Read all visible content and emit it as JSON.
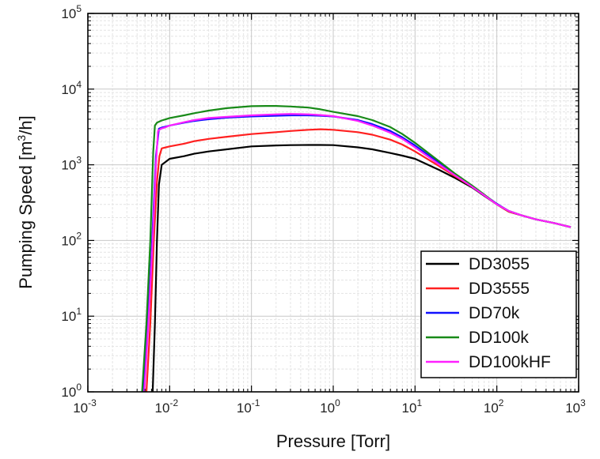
{
  "chart_data": {
    "type": "line",
    "title": "",
    "xlabel": "Pressure [Torr]",
    "ylabel_main": "Pumping Speed [m",
    "ylabel_sup": "3",
    "ylabel_tail": "/h]",
    "xscale": "log",
    "yscale": "log",
    "xlim": [
      0.001,
      1000
    ],
    "ylim": [
      1,
      100000
    ],
    "grid": true,
    "legend_position": "bottom-right",
    "x_ticks": [
      {
        "base": "10",
        "exp": "-3",
        "value": 0.001
      },
      {
        "base": "10",
        "exp": "-2",
        "value": 0.01
      },
      {
        "base": "10",
        "exp": "-1",
        "value": 0.1
      },
      {
        "base": "10",
        "exp": "0",
        "value": 1
      },
      {
        "base": "10",
        "exp": "1",
        "value": 10
      },
      {
        "base": "10",
        "exp": "2",
        "value": 100
      },
      {
        "base": "10",
        "exp": "3",
        "value": 1000
      }
    ],
    "y_ticks": [
      {
        "base": "10",
        "exp": "0",
        "value": 1
      },
      {
        "base": "10",
        "exp": "1",
        "value": 10
      },
      {
        "base": "10",
        "exp": "2",
        "value": 100
      },
      {
        "base": "10",
        "exp": "3",
        "value": 1000
      },
      {
        "base": "10",
        "exp": "4",
        "value": 10000
      },
      {
        "base": "10",
        "exp": "5",
        "value": 100000
      }
    ],
    "series": [
      {
        "name": "DD3055",
        "color": "#000000",
        "x": [
          0.0062,
          0.0066,
          0.007,
          0.0074,
          0.008,
          0.009,
          0.01,
          0.015,
          0.02,
          0.03,
          0.05,
          0.1,
          0.2,
          0.3,
          0.5,
          0.7,
          1,
          2,
          3,
          5,
          7,
          10,
          20,
          30,
          50,
          70,
          100,
          140,
          200,
          300,
          500,
          800
        ],
        "y": [
          1,
          8,
          100,
          550,
          1000,
          1100,
          1200,
          1300,
          1400,
          1500,
          1600,
          1750,
          1800,
          1820,
          1830,
          1830,
          1820,
          1700,
          1600,
          1430,
          1320,
          1200,
          850,
          680,
          500,
          390,
          300,
          240,
          215,
          190,
          170,
          150
        ]
      },
      {
        "name": "DD3555",
        "color": "#ff2020",
        "x": [
          0.0052,
          0.0058,
          0.0064,
          0.007,
          0.0075,
          0.008,
          0.009,
          0.01,
          0.015,
          0.02,
          0.03,
          0.05,
          0.1,
          0.2,
          0.3,
          0.5,
          0.7,
          1,
          2,
          3,
          5,
          7,
          10,
          20,
          30,
          50,
          70,
          100,
          140,
          200,
          300,
          500,
          800
        ],
        "y": [
          1,
          8,
          100,
          600,
          1300,
          1650,
          1700,
          1750,
          1900,
          2050,
          2200,
          2350,
          2550,
          2700,
          2800,
          2900,
          2950,
          2900,
          2700,
          2500,
          2150,
          1850,
          1500,
          950,
          720,
          510,
          395,
          300,
          240,
          215,
          190,
          170,
          150
        ]
      },
      {
        "name": "DD70k",
        "color": "#1010ff",
        "x": [
          0.0048,
          0.0054,
          0.0061,
          0.0068,
          0.0074,
          0.008,
          0.009,
          0.01,
          0.015,
          0.02,
          0.03,
          0.05,
          0.1,
          0.2,
          0.3,
          0.5,
          0.7,
          1,
          2,
          3,
          5,
          7,
          10,
          20,
          30,
          50,
          70,
          100,
          140,
          200,
          300,
          500,
          800
        ],
        "y": [
          1,
          8,
          100,
          1300,
          3000,
          3100,
          3200,
          3300,
          3600,
          3800,
          4000,
          4200,
          4350,
          4450,
          4500,
          4500,
          4450,
          4350,
          3900,
          3450,
          2800,
          2300,
          1800,
          1050,
          760,
          520,
          400,
          305,
          245,
          215,
          190,
          170,
          150
        ]
      },
      {
        "name": "DD100k",
        "color": "#188a18",
        "x": [
          0.0046,
          0.0052,
          0.0058,
          0.0063,
          0.0066,
          0.007,
          0.008,
          0.009,
          0.01,
          0.015,
          0.02,
          0.03,
          0.05,
          0.1,
          0.15,
          0.2,
          0.3,
          0.5,
          0.7,
          1,
          2,
          3,
          5,
          7,
          10,
          20,
          30,
          50,
          70,
          100,
          140,
          200,
          300,
          500,
          800
        ],
        "y": [
          1,
          8,
          100,
          1500,
          3300,
          3600,
          3850,
          4000,
          4150,
          4500,
          4800,
          5200,
          5600,
          5950,
          6000,
          6000,
          5900,
          5700,
          5400,
          5000,
          4400,
          3900,
          3150,
          2550,
          1950,
          1100,
          780,
          530,
          405,
          300,
          245,
          215,
          190,
          170,
          150
        ]
      },
      {
        "name": "DD100kHF",
        "color": "#ff20ff",
        "x": [
          0.0049,
          0.0055,
          0.0062,
          0.0068,
          0.0072,
          0.0078,
          0.009,
          0.01,
          0.015,
          0.02,
          0.03,
          0.05,
          0.1,
          0.2,
          0.3,
          0.5,
          0.7,
          1,
          2,
          3,
          5,
          7,
          10,
          20,
          30,
          50,
          70,
          100,
          140,
          200,
          300,
          500,
          800
        ],
        "y": [
          1,
          8,
          100,
          1000,
          2800,
          3000,
          3150,
          3300,
          3650,
          3900,
          4150,
          4300,
          4500,
          4650,
          4700,
          4650,
          4550,
          4400,
          3800,
          3300,
          2650,
          2200,
          1700,
          1000,
          740,
          510,
          395,
          300,
          245,
          215,
          190,
          170,
          150
        ]
      }
    ]
  }
}
